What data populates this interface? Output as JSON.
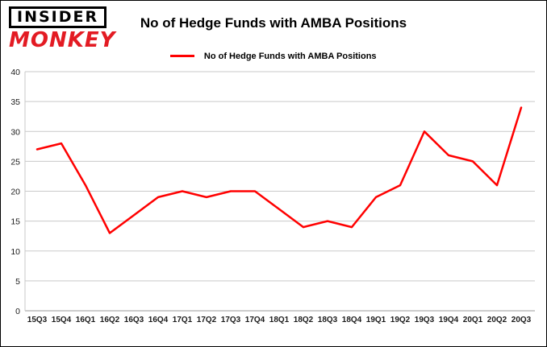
{
  "logo": {
    "line1": "INSIDER",
    "line2": "MONKEY"
  },
  "header": {
    "title": "No of Hedge Funds with AMBA Positions"
  },
  "legend": {
    "label": "No of Hedge Funds with AMBA Positions",
    "line_color": "#ff0000"
  },
  "chart_data": {
    "type": "line",
    "title": "No of Hedge Funds with AMBA Positions",
    "categories": [
      "15Q3",
      "15Q4",
      "16Q1",
      "16Q2",
      "16Q3",
      "16Q4",
      "17Q1",
      "17Q2",
      "17Q3",
      "17Q4",
      "18Q1",
      "18Q2",
      "18Q3",
      "18Q4",
      "19Q1",
      "19Q2",
      "19Q3",
      "19Q4",
      "20Q1",
      "20Q2",
      "20Q3"
    ],
    "series": [
      {
        "name": "No of Hedge Funds with AMBA Positions",
        "color": "#ff0000",
        "values": [
          27,
          28,
          21,
          13,
          16,
          19,
          20,
          19,
          20,
          20,
          17,
          14,
          15,
          14,
          19,
          21,
          30,
          26,
          25,
          21,
          34
        ]
      }
    ],
    "xlabel": "",
    "ylabel": "",
    "ylim": [
      0,
      40
    ],
    "yticks": [
      0,
      5,
      10,
      15,
      20,
      25,
      30,
      35,
      40
    ],
    "grid": true,
    "legend_position": "top"
  },
  "colors": {
    "line": "#ff0000",
    "grid": "#c9c9c9",
    "zero_axis": "#9a9a9a",
    "axis_text": "#1a1a1a",
    "logo_red": "#e31b23"
  }
}
